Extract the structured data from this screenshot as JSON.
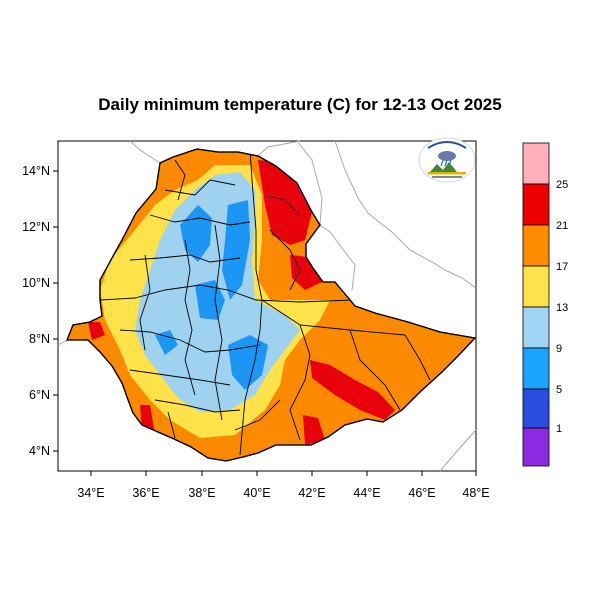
{
  "title": "Daily minimum temperature (C) for 12-13 Oct 2025",
  "map": {
    "x_ticks": [
      "34°E",
      "36°E",
      "38°E",
      "40°E",
      "42°E",
      "44°E",
      "46°E",
      "48°E"
    ],
    "y_ticks": [
      "14°N",
      "12°N",
      "10°N",
      "8°N",
      "6°N",
      "4°N"
    ],
    "logo_icon": "meteorology-institute-logo-icon"
  },
  "colorbar": {
    "labels": [
      "25",
      "21",
      "17",
      "13",
      "9",
      "5",
      "1"
    ],
    "colors": [
      "#ffb0b8",
      "#ee0000",
      "#ff8c00",
      "#ffe14a",
      "#9fd4f2",
      "#1aa3ff",
      "#2a4de0",
      "#8a2be2"
    ]
  },
  "colors": {
    "red": "#e8000b",
    "orange": "#fb8a00",
    "yellow": "#fde24a",
    "light_blue": "#9fd2ef",
    "blue": "#1c96f5",
    "neighbor_border": "#a8a8a8"
  }
}
